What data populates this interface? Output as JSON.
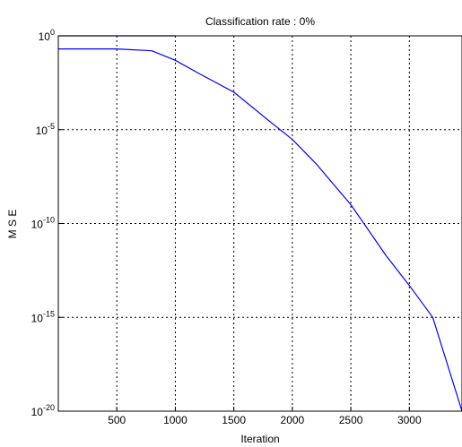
{
  "chart_data": {
    "type": "line",
    "title": "Classification rate : 0%",
    "xlabel": "Iteration",
    "ylabel": "M S E",
    "x_range": [
      0,
      3450
    ],
    "y_scale": "log",
    "y_range": [
      1e-20,
      1
    ],
    "x_ticks": [
      {
        "value": 500,
        "label": "500"
      },
      {
        "value": 1000,
        "label": "1000"
      },
      {
        "value": 1500,
        "label": "1500"
      },
      {
        "value": 2000,
        "label": "2000"
      },
      {
        "value": 2500,
        "label": "2500"
      },
      {
        "value": 3000,
        "label": "3000"
      }
    ],
    "y_ticks": [
      {
        "exp": 0,
        "base": "10",
        "sup": "0"
      },
      {
        "exp": -5,
        "base": "10",
        "sup": "-5"
      },
      {
        "exp": -10,
        "base": "10",
        "sup": "-10"
      },
      {
        "exp": -15,
        "base": "10",
        "sup": "-15"
      },
      {
        "exp": -20,
        "base": "10",
        "sup": "-20"
      }
    ],
    "grid": true,
    "line_color": "#0000ff",
    "series": [
      {
        "x": [
          0,
          1000
        ],
        "y": [
          1,
          1
        ]
      },
      {
        "x": [
          0,
          500,
          800,
          1000,
          1200,
          1500,
          1800,
          2000,
          2200,
          2500,
          2800,
          3000,
          3200,
          3450
        ],
        "y": [
          0.2,
          0.2,
          0.16,
          0.05,
          0.01,
          0.001,
          3e-05,
          3e-06,
          1.6e-07,
          1e-09,
          2e-12,
          5e-14,
          1e-15,
          1e-20
        ]
      }
    ]
  }
}
